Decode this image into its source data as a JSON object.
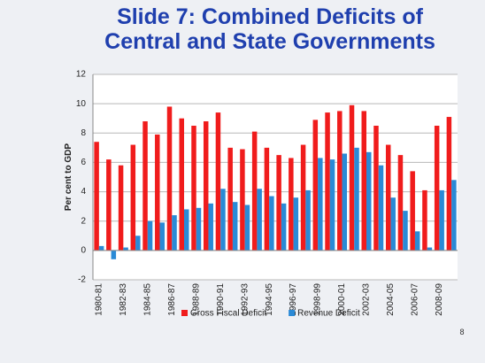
{
  "chart_data": {
    "type": "bar",
    "title": [
      "Slide 7: Combined Deficits of",
      "Central and State Governments"
    ],
    "y_label": "Per cent to GDP",
    "categories": [
      "1980-81",
      null,
      "1982-83",
      null,
      "1984-85",
      null,
      "1986-87",
      null,
      "1988-89",
      null,
      "1990-91",
      null,
      "1992-93",
      null,
      "1994-95",
      null,
      "1996-97",
      null,
      "1998-99",
      null,
      "2000-01",
      null,
      "2002-03",
      null,
      "2004-05",
      null,
      "2006-07",
      null,
      "2008-09",
      null
    ],
    "series": [
      {
        "name": "Gross Fiscal Deficit",
        "color": "#f01c1c",
        "values": [
          7.4,
          6.2,
          5.8,
          7.2,
          8.8,
          7.9,
          9.8,
          9.0,
          8.5,
          8.8,
          9.4,
          7.0,
          6.9,
          8.1,
          7.0,
          6.5,
          6.3,
          7.2,
          8.9,
          9.4,
          9.5,
          9.9,
          9.5,
          8.5,
          7.2,
          6.5,
          5.4,
          4.1,
          8.5,
          9.1
        ]
      },
      {
        "name": "Revenue Deficit",
        "color": "#2a8ad6",
        "values": [
          0.3,
          -0.6,
          0.2,
          1.0,
          2.0,
          1.9,
          2.4,
          2.8,
          2.9,
          3.2,
          4.2,
          3.3,
          3.1,
          4.2,
          3.7,
          3.2,
          3.6,
          4.1,
          6.3,
          6.2,
          6.6,
          7.0,
          6.7,
          5.8,
          3.6,
          2.7,
          1.3,
          0.2,
          4.1,
          4.8
        ]
      }
    ],
    "ylim": [
      -2,
      12
    ],
    "yticks": [
      -2,
      0,
      2,
      4,
      6,
      8,
      10,
      12
    ],
    "grid": true,
    "legend": "bottom",
    "slide_number": "8"
  }
}
